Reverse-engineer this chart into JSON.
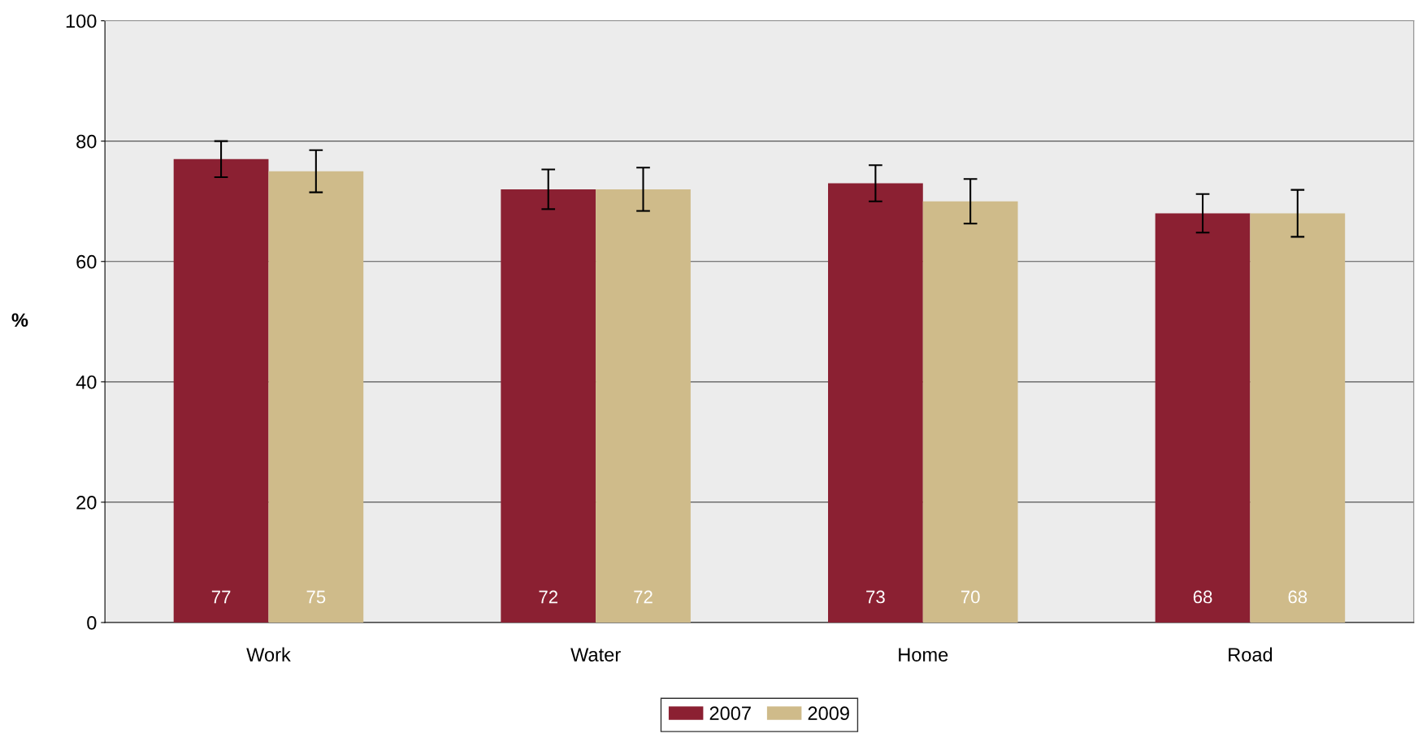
{
  "chart_data": {
    "type": "bar",
    "ylabel": "%",
    "categories": [
      "Work",
      "Water",
      "Home",
      "Road"
    ],
    "series": [
      {
        "name": "2007",
        "color": "#8b2032",
        "values": [
          77,
          72,
          73,
          68
        ],
        "errors": [
          3,
          3.3,
          3,
          3.2
        ]
      },
      {
        "name": "2009",
        "color": "#cfbb8a",
        "values": [
          75,
          72,
          70,
          68
        ],
        "errors": [
          3.5,
          3.6,
          3.7,
          3.9
        ]
      }
    ],
    "ylim": [
      0,
      100
    ],
    "yticks": [
      0,
      20,
      40,
      60,
      80,
      100
    ],
    "grid": "y",
    "legend": "bottom",
    "data_labels": true
  }
}
